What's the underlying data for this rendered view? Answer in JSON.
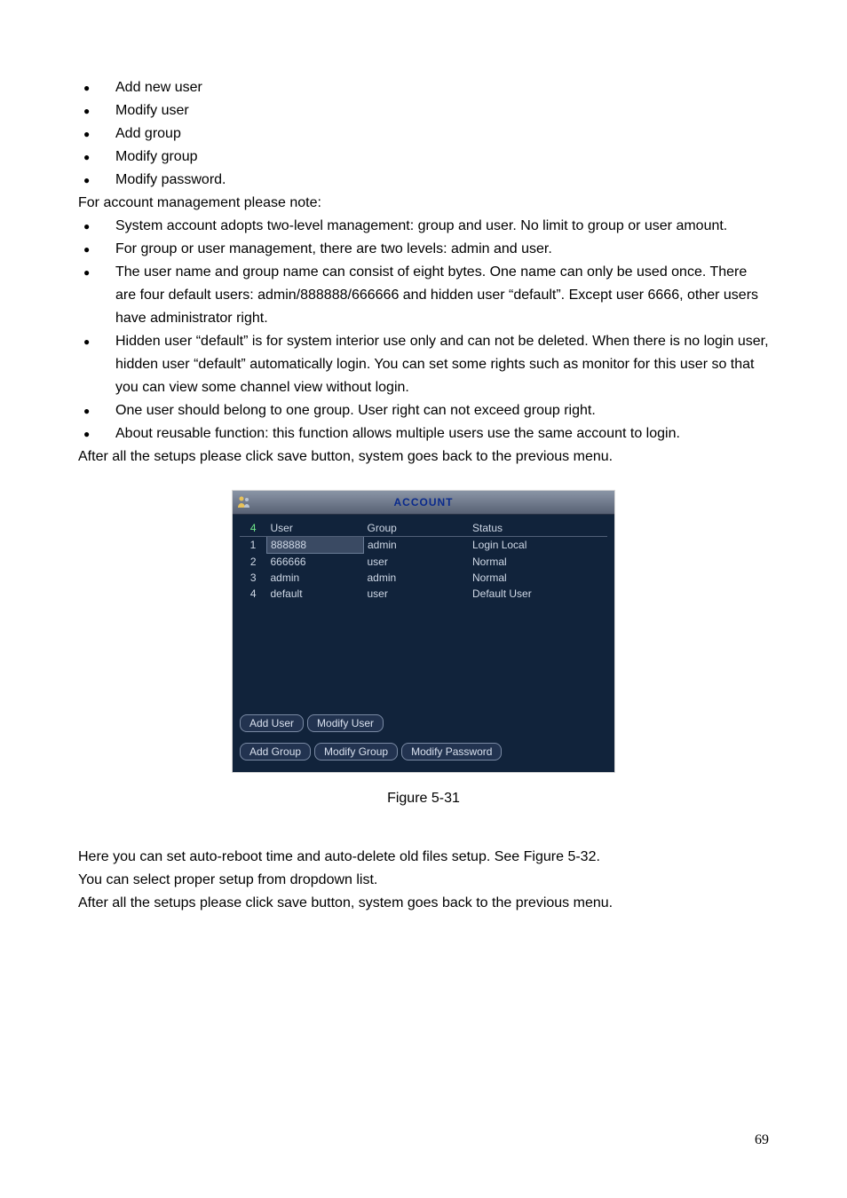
{
  "page_number": "69",
  "bullets_top": [
    "Add new user",
    "Modify user",
    "Add group",
    "Modify group",
    "Modify password."
  ],
  "line_account_note": "For account management please note:",
  "bullets_notes": [
    "System account adopts two-level management: group and user. No limit to group or user amount.",
    "For group or user management, there are two levels: admin and user.",
    "The user name and group name can consist of eight bytes. One name can only be used once. There are four default users: admin/888888/666666 and hidden user “default”. Except user 6666, other users have administrator right.",
    "Hidden user “default” is for system interior use only and can not be deleted. When there is no login user, hidden user “default” automatically login. You can set some rights such as monitor for this user so that you can view some channel view without login.",
    "One user should belong to one group. User right can not exceed group right.",
    "About reusable function: this function allows multiple users use the same account to login."
  ],
  "line_after_setups": "After all the setups please click save button, system goes back to the previous menu.",
  "account_window": {
    "title": "ACCOUNT",
    "title_color": "#0a2a8c",
    "bg_color": "#11233b",
    "text_color": "#cfd8e6",
    "header_index_color": "#6fe88a",
    "count": "4",
    "columns": [
      "User",
      "Group",
      "Status"
    ],
    "rows": [
      {
        "idx": "1",
        "user": "888888",
        "group": "admin",
        "status": "Login Local",
        "selected": true
      },
      {
        "idx": "2",
        "user": "666666",
        "group": "user",
        "status": "Normal",
        "selected": false
      },
      {
        "idx": "3",
        "user": "admin",
        "group": "admin",
        "status": "Normal",
        "selected": false
      },
      {
        "idx": "4",
        "user": "default",
        "group": "user",
        "status": "Default User",
        "selected": false
      }
    ],
    "buttons_row1": [
      "Add User",
      "Modify User"
    ],
    "buttons_row2": [
      "Add Group",
      "Modify Group",
      "Modify Password"
    ]
  },
  "figure_caption": "Figure 5-31",
  "section2": {
    "line1": "Here you can set auto-reboot time and auto-delete old files setup. See Figure 5-32.",
    "line2": "You can select proper setup from dropdown list.",
    "line3": "After all the setups please click save button, system goes back to the previous menu."
  }
}
